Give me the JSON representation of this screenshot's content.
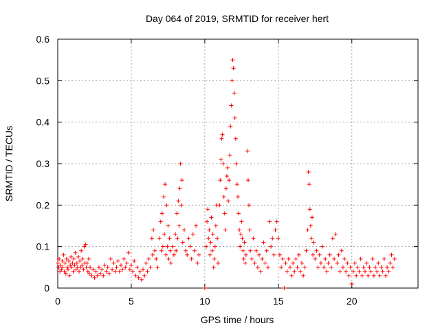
{
  "chart_data": {
    "type": "scatter",
    "title": "Day 064 of 2019, SRMTID for receiver hert",
    "xlabel": "GPS time / hours",
    "ylabel": "SRMTID / TECUs",
    "xlim": [
      0,
      24.5
    ],
    "ylim": [
      0,
      0.6
    ],
    "xticks": [
      0,
      5,
      10,
      15,
      20
    ],
    "xtick_labels": [
      "0",
      "5",
      "10",
      "15",
      "20"
    ],
    "yticks": [
      0,
      0.1,
      0.2,
      0.3,
      0.4,
      0.5,
      0.6
    ],
    "ytick_labels": [
      "0",
      "0.1",
      "0.2",
      "0.3",
      "0.4",
      "0.5",
      "0.6"
    ],
    "grid": true,
    "marker": "plus",
    "color": "#ff0000",
    "series": [
      {
        "name": "SRMTID",
        "points": [
          [
            0.0,
            0.06
          ],
          [
            0.05,
            0.05
          ],
          [
            0.1,
            0.07
          ],
          [
            0.15,
            0.04
          ],
          [
            0.2,
            0.055
          ],
          [
            0.25,
            0.045
          ],
          [
            0.3,
            0.065
          ],
          [
            0.35,
            0.05
          ],
          [
            0.4,
            0.08
          ],
          [
            0.45,
            0.04
          ],
          [
            0.5,
            0.06
          ],
          [
            0.55,
            0.035
          ],
          [
            0.6,
            0.07
          ],
          [
            0.65,
            0.05
          ],
          [
            0.7,
            0.045
          ],
          [
            0.75,
            0.065
          ],
          [
            0.8,
            0.03
          ],
          [
            0.85,
            0.055
          ],
          [
            0.9,
            0.075
          ],
          [
            0.95,
            0.05
          ],
          [
            1.0,
            0.06
          ],
          [
            1.05,
            0.04
          ],
          [
            1.1,
            0.07
          ],
          [
            1.15,
            0.055
          ],
          [
            1.2,
            0.085
          ],
          [
            1.25,
            0.045
          ],
          [
            1.3,
            0.06
          ],
          [
            1.35,
            0.05
          ],
          [
            1.4,
            0.075
          ],
          [
            1.45,
            0.04
          ],
          [
            1.5,
            0.065
          ],
          [
            1.55,
            0.05
          ],
          [
            1.6,
            0.09
          ],
          [
            1.65,
            0.055
          ],
          [
            1.7,
            0.07
          ],
          [
            1.75,
            0.045
          ],
          [
            1.8,
            0.1
          ],
          [
            1.85,
            0.06
          ],
          [
            1.9,
            0.105
          ],
          [
            1.95,
            0.05
          ],
          [
            2.0,
            0.06
          ],
          [
            2.05,
            0.04
          ],
          [
            2.1,
            0.07
          ],
          [
            2.15,
            0.035
          ],
          [
            2.2,
            0.05
          ],
          [
            2.3,
            0.03
          ],
          [
            2.4,
            0.045
          ],
          [
            2.5,
            0.025
          ],
          [
            2.6,
            0.04
          ],
          [
            2.7,
            0.03
          ],
          [
            2.8,
            0.05
          ],
          [
            2.9,
            0.035
          ],
          [
            3.0,
            0.045
          ],
          [
            3.1,
            0.03
          ],
          [
            3.2,
            0.055
          ],
          [
            3.3,
            0.04
          ],
          [
            3.4,
            0.05
          ],
          [
            3.5,
            0.035
          ],
          [
            3.6,
            0.07
          ],
          [
            3.7,
            0.045
          ],
          [
            3.8,
            0.06
          ],
          [
            3.9,
            0.04
          ],
          [
            4.0,
            0.05
          ],
          [
            4.1,
            0.065
          ],
          [
            4.2,
            0.04
          ],
          [
            4.3,
            0.055
          ],
          [
            4.4,
            0.045
          ],
          [
            4.5,
            0.07
          ],
          [
            4.6,
            0.05
          ],
          [
            4.7,
            0.06
          ],
          [
            4.8,
            0.085
          ],
          [
            4.9,
            0.045
          ],
          [
            5.0,
            0.055
          ],
          [
            5.1,
            0.04
          ],
          [
            5.2,
            0.065
          ],
          [
            5.3,
            0.03
          ],
          [
            5.4,
            0.05
          ],
          [
            5.5,
            0.025
          ],
          [
            5.6,
            0.04
          ],
          [
            5.7,
            0.02
          ],
          [
            5.8,
            0.045
          ],
          [
            5.9,
            0.03
          ],
          [
            6.0,
            0.06
          ],
          [
            6.1,
            0.04
          ],
          [
            6.2,
            0.07
          ],
          [
            6.3,
            0.05
          ],
          [
            6.4,
            0.12
          ],
          [
            6.45,
            0.08
          ],
          [
            6.5,
            0.14
          ],
          [
            6.6,
            0.09
          ],
          [
            6.7,
            0.07
          ],
          [
            6.8,
            0.05
          ],
          [
            6.9,
            0.12
          ],
          [
            7.0,
            0.16
          ],
          [
            7.05,
            0.09
          ],
          [
            7.1,
            0.18
          ],
          [
            7.15,
            0.1
          ],
          [
            7.2,
            0.22
          ],
          [
            7.25,
            0.13
          ],
          [
            7.3,
            0.25
          ],
          [
            7.35,
            0.08
          ],
          [
            7.4,
            0.2
          ],
          [
            7.45,
            0.1
          ],
          [
            7.5,
            0.15
          ],
          [
            7.55,
            0.07
          ],
          [
            7.6,
            0.12
          ],
          [
            7.65,
            0.09
          ],
          [
            7.7,
            0.06
          ],
          [
            7.8,
            0.1
          ],
          [
            7.9,
            0.08
          ],
          [
            8.0,
            0.13
          ],
          [
            8.05,
            0.09
          ],
          [
            8.1,
            0.18
          ],
          [
            8.15,
            0.12
          ],
          [
            8.2,
            0.21
          ],
          [
            8.25,
            0.15
          ],
          [
            8.3,
            0.24
          ],
          [
            8.35,
            0.3
          ],
          [
            8.4,
            0.2
          ],
          [
            8.45,
            0.26
          ],
          [
            8.5,
            0.11
          ],
          [
            8.6,
            0.14
          ],
          [
            8.7,
            0.09
          ],
          [
            8.8,
            0.08
          ],
          [
            8.9,
            0.12
          ],
          [
            9.0,
            0.1
          ],
          [
            9.1,
            0.07
          ],
          [
            9.2,
            0.13
          ],
          [
            9.3,
            0.09
          ],
          [
            9.4,
            0.15
          ],
          [
            9.5,
            0.06
          ],
          [
            9.6,
            0.08
          ],
          [
            10.0,
            0.0
          ],
          [
            10.1,
            0.1
          ],
          [
            10.15,
            0.16
          ],
          [
            10.2,
            0.19
          ],
          [
            10.25,
            0.12
          ],
          [
            10.3,
            0.14
          ],
          [
            10.35,
            0.08
          ],
          [
            10.4,
            0.11
          ],
          [
            10.45,
            0.17
          ],
          [
            10.5,
            0.09
          ],
          [
            10.55,
            0.13
          ],
          [
            10.6,
            0.05
          ],
          [
            10.65,
            0.07
          ],
          [
            10.7,
            0.1
          ],
          [
            10.75,
            0.15
          ],
          [
            10.8,
            0.2
          ],
          [
            10.85,
            0.12
          ],
          [
            10.9,
            0.06
          ],
          [
            11.0,
            0.2
          ],
          [
            11.05,
            0.26
          ],
          [
            11.1,
            0.31
          ],
          [
            11.15,
            0.36
          ],
          [
            11.2,
            0.37
          ],
          [
            11.25,
            0.3
          ],
          [
            11.3,
            0.22
          ],
          [
            11.35,
            0.18
          ],
          [
            11.4,
            0.14
          ],
          [
            11.45,
            0.24
          ],
          [
            11.5,
            0.27
          ],
          [
            11.55,
            0.29
          ],
          [
            11.6,
            0.21
          ],
          [
            11.65,
            0.26
          ],
          [
            11.7,
            0.32
          ],
          [
            11.75,
            0.39
          ],
          [
            11.8,
            0.44
          ],
          [
            11.85,
            0.5
          ],
          [
            11.9,
            0.55
          ],
          [
            11.95,
            0.53
          ],
          [
            12.0,
            0.47
          ],
          [
            12.05,
            0.41
          ],
          [
            12.1,
            0.36
          ],
          [
            12.15,
            0.3
          ],
          [
            12.2,
            0.25
          ],
          [
            12.25,
            0.22
          ],
          [
            12.3,
            0.18
          ],
          [
            12.35,
            0.14
          ],
          [
            12.4,
            0.1
          ],
          [
            12.45,
            0.13
          ],
          [
            12.5,
            0.16
          ],
          [
            12.55,
            0.12
          ],
          [
            12.6,
            0.09
          ],
          [
            12.65,
            0.07
          ],
          [
            12.7,
            0.11
          ],
          [
            12.75,
            0.06
          ],
          [
            12.8,
            0.08
          ],
          [
            12.9,
            0.33
          ],
          [
            12.95,
            0.26
          ],
          [
            13.0,
            0.2
          ],
          [
            13.05,
            0.14
          ],
          [
            13.1,
            0.09
          ],
          [
            13.2,
            0.07
          ],
          [
            13.3,
            0.12
          ],
          [
            13.4,
            0.06
          ],
          [
            13.5,
            0.09
          ],
          [
            13.6,
            0.05
          ],
          [
            13.7,
            0.08
          ],
          [
            13.8,
            0.04
          ],
          [
            13.9,
            0.07
          ],
          [
            14.0,
            0.11
          ],
          [
            14.1,
            0.06
          ],
          [
            14.2,
            0.09
          ],
          [
            14.3,
            0.05
          ],
          [
            14.4,
            0.16
          ],
          [
            14.5,
            0.1
          ],
          [
            14.6,
            0.12
          ],
          [
            14.7,
            0.08
          ],
          [
            14.8,
            0.14
          ],
          [
            14.9,
            0.16
          ],
          [
            15.0,
            0.12
          ],
          [
            15.1,
            0.08
          ],
          [
            15.2,
            0.05
          ],
          [
            15.3,
            0.07
          ],
          [
            15.4,
            0.0
          ],
          [
            15.5,
            0.06
          ],
          [
            15.6,
            0.04
          ],
          [
            15.7,
            0.07
          ],
          [
            15.8,
            0.05
          ],
          [
            15.9,
            0.03
          ],
          [
            16.0,
            0.06
          ],
          [
            16.1,
            0.04
          ],
          [
            16.2,
            0.07
          ],
          [
            16.3,
            0.05
          ],
          [
            16.4,
            0.08
          ],
          [
            16.5,
            0.04
          ],
          [
            16.6,
            0.06
          ],
          [
            16.7,
            0.03
          ],
          [
            16.8,
            0.05
          ],
          [
            16.9,
            0.09
          ],
          [
            17.0,
            0.14
          ],
          [
            17.05,
            0.28
          ],
          [
            17.1,
            0.25
          ],
          [
            17.15,
            0.19
          ],
          [
            17.2,
            0.15
          ],
          [
            17.25,
            0.12
          ],
          [
            17.3,
            0.17
          ],
          [
            17.35,
            0.08
          ],
          [
            17.4,
            0.11
          ],
          [
            17.5,
            0.07
          ],
          [
            17.6,
            0.09
          ],
          [
            17.7,
            0.05
          ],
          [
            17.8,
            0.08
          ],
          [
            17.9,
            0.06
          ],
          [
            18.0,
            0.1
          ],
          [
            18.1,
            0.05
          ],
          [
            18.2,
            0.07
          ],
          [
            18.3,
            0.04
          ],
          [
            18.4,
            0.06
          ],
          [
            18.5,
            0.08
          ],
          [
            18.6,
            0.05
          ],
          [
            18.7,
            0.12
          ],
          [
            18.8,
            0.07
          ],
          [
            18.9,
            0.13
          ],
          [
            19.0,
            0.06
          ],
          [
            19.1,
            0.08
          ],
          [
            19.2,
            0.04
          ],
          [
            19.3,
            0.09
          ],
          [
            19.4,
            0.05
          ],
          [
            19.5,
            0.07
          ],
          [
            19.6,
            0.04
          ],
          [
            19.7,
            0.06
          ],
          [
            19.8,
            0.03
          ],
          [
            19.9,
            0.05
          ],
          [
            20.0,
            0.01
          ],
          [
            20.1,
            0.04
          ],
          [
            20.2,
            0.06
          ],
          [
            20.3,
            0.03
          ],
          [
            20.4,
            0.05
          ],
          [
            20.5,
            0.04
          ],
          [
            20.6,
            0.07
          ],
          [
            20.7,
            0.03
          ],
          [
            20.8,
            0.05
          ],
          [
            20.9,
            0.04
          ],
          [
            21.0,
            0.06
          ],
          [
            21.1,
            0.03
          ],
          [
            21.2,
            0.05
          ],
          [
            21.3,
            0.04
          ],
          [
            21.4,
            0.07
          ],
          [
            21.5,
            0.03
          ],
          [
            21.6,
            0.05
          ],
          [
            21.7,
            0.04
          ],
          [
            21.8,
            0.06
          ],
          [
            21.9,
            0.03
          ],
          [
            22.0,
            0.05
          ],
          [
            22.1,
            0.04
          ],
          [
            22.2,
            0.07
          ],
          [
            22.3,
            0.03
          ],
          [
            22.4,
            0.05
          ],
          [
            22.5,
            0.04
          ],
          [
            22.6,
            0.06
          ],
          [
            22.7,
            0.08
          ],
          [
            22.8,
            0.05
          ],
          [
            22.9,
            0.07
          ]
        ]
      }
    ]
  }
}
